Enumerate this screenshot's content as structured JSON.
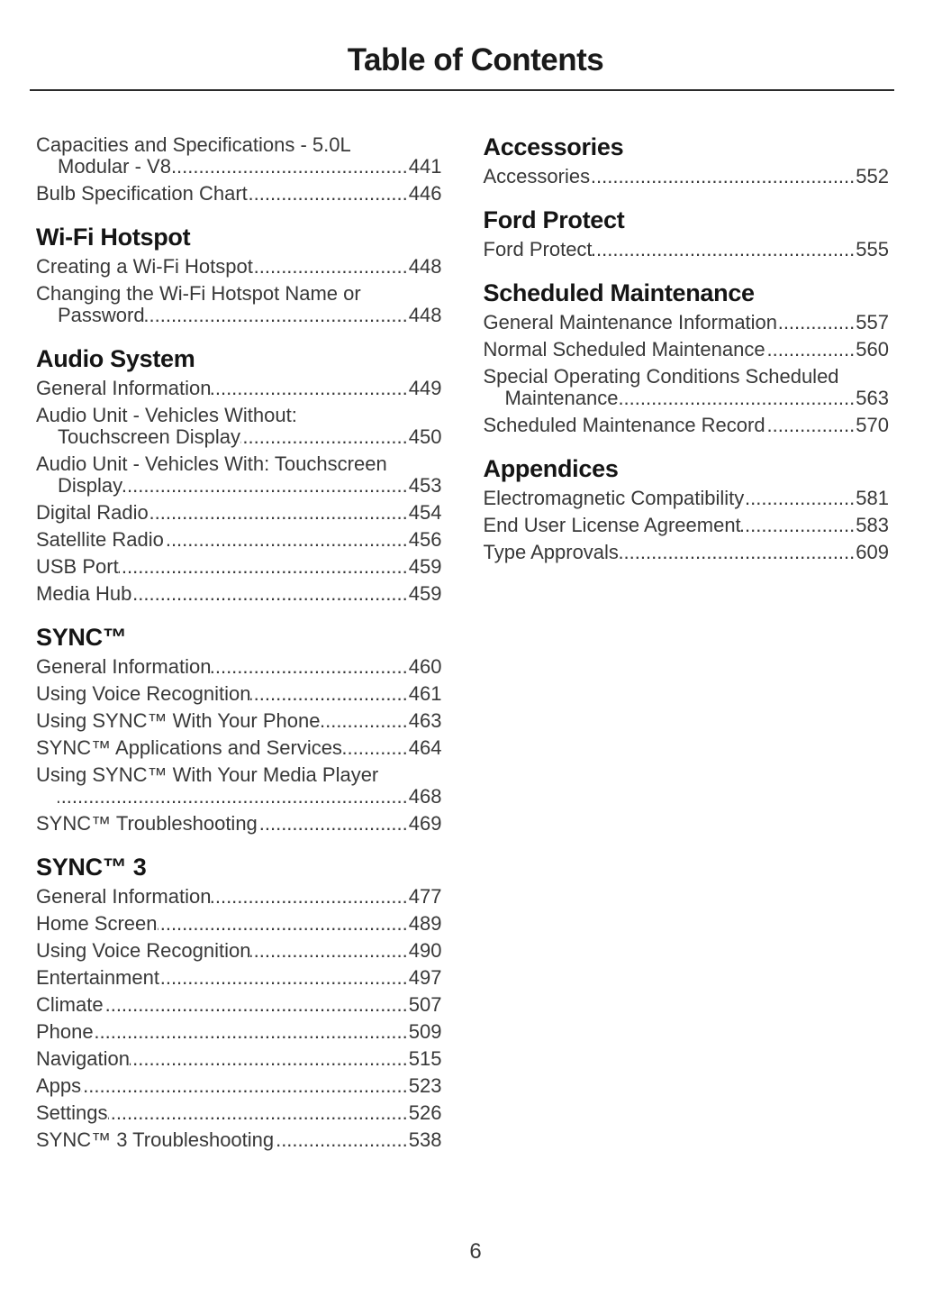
{
  "page": {
    "title": "Table of Contents",
    "folio": "6"
  },
  "colors": {
    "background": "#ffffff",
    "heading_text": "#151515",
    "body_text": "#383838",
    "rule": "#2b2b2b"
  },
  "columns": {
    "left": [
      {
        "title": "",
        "items": [
          {
            "lines": [
              "Capacities and Specifications - 5.0L",
              "Modular - V8"
            ],
            "page": "441"
          },
          {
            "lines": [
              "Bulb Specification Chart"
            ],
            "page": "446"
          }
        ]
      },
      {
        "title": "Wi-Fi Hotspot",
        "items": [
          {
            "lines": [
              "Creating a Wi-Fi Hotspot"
            ],
            "page": "448"
          },
          {
            "lines": [
              "Changing the Wi-Fi Hotspot Name or",
              "Password"
            ],
            "page": "448"
          }
        ]
      },
      {
        "title": "Audio System",
        "items": [
          {
            "lines": [
              "General Information"
            ],
            "page": "449"
          },
          {
            "lines": [
              "Audio Unit - Vehicles Without:",
              "Touchscreen Display"
            ],
            "page": "450"
          },
          {
            "lines": [
              "Audio Unit - Vehicles With: Touchscreen",
              "Display"
            ],
            "page": "453"
          },
          {
            "lines": [
              "Digital Radio"
            ],
            "page": "454"
          },
          {
            "lines": [
              "Satellite Radio"
            ],
            "page": "456"
          },
          {
            "lines": [
              "USB Port"
            ],
            "page": "459"
          },
          {
            "lines": [
              "Media Hub"
            ],
            "page": "459"
          }
        ]
      },
      {
        "title": "SYNC™",
        "items": [
          {
            "lines": [
              "General Information"
            ],
            "page": "460"
          },
          {
            "lines": [
              "Using Voice Recognition"
            ],
            "page": "461"
          },
          {
            "lines": [
              "Using SYNC™ With Your Phone"
            ],
            "page": "463"
          },
          {
            "lines": [
              "SYNC™ Applications and Services"
            ],
            "page": "464"
          },
          {
            "lines": [
              "Using SYNC™ With Your Media Player",
              ""
            ],
            "page": "468"
          },
          {
            "lines": [
              "SYNC™ Troubleshooting"
            ],
            "page": "469"
          }
        ]
      },
      {
        "title": "SYNC™ 3",
        "items": [
          {
            "lines": [
              "General Information"
            ],
            "page": "477"
          },
          {
            "lines": [
              "Home Screen"
            ],
            "page": "489"
          },
          {
            "lines": [
              "Using Voice Recognition"
            ],
            "page": "490"
          },
          {
            "lines": [
              "Entertainment"
            ],
            "page": "497"
          },
          {
            "lines": [
              "Climate"
            ],
            "page": "507"
          },
          {
            "lines": [
              "Phone"
            ],
            "page": "509"
          },
          {
            "lines": [
              "Navigation"
            ],
            "page": "515"
          },
          {
            "lines": [
              "Apps"
            ],
            "page": "523"
          },
          {
            "lines": [
              "Settings"
            ],
            "page": "526"
          },
          {
            "lines": [
              "SYNC™ 3 Troubleshooting"
            ],
            "page": "538"
          }
        ]
      }
    ],
    "right": [
      {
        "title": "Accessories",
        "items": [
          {
            "lines": [
              "Accessories"
            ],
            "page": "552"
          }
        ]
      },
      {
        "title": "Ford Protect",
        "items": [
          {
            "lines": [
              "Ford Protect"
            ],
            "page": "555"
          }
        ]
      },
      {
        "title": "Scheduled Maintenance",
        "items": [
          {
            "lines": [
              "General Maintenance Information"
            ],
            "page": "557"
          },
          {
            "lines": [
              "Normal Scheduled Maintenance"
            ],
            "page": "560"
          },
          {
            "lines": [
              "Special Operating Conditions Scheduled",
              "Maintenance"
            ],
            "page": "563"
          },
          {
            "lines": [
              "Scheduled Maintenance Record"
            ],
            "page": "570"
          }
        ]
      },
      {
        "title": "Appendices",
        "items": [
          {
            "lines": [
              "Electromagnetic Compatibility"
            ],
            "page": "581"
          },
          {
            "lines": [
              "End User License Agreement"
            ],
            "page": "583"
          },
          {
            "lines": [
              "Type Approvals"
            ],
            "page": "609"
          }
        ]
      }
    ]
  }
}
